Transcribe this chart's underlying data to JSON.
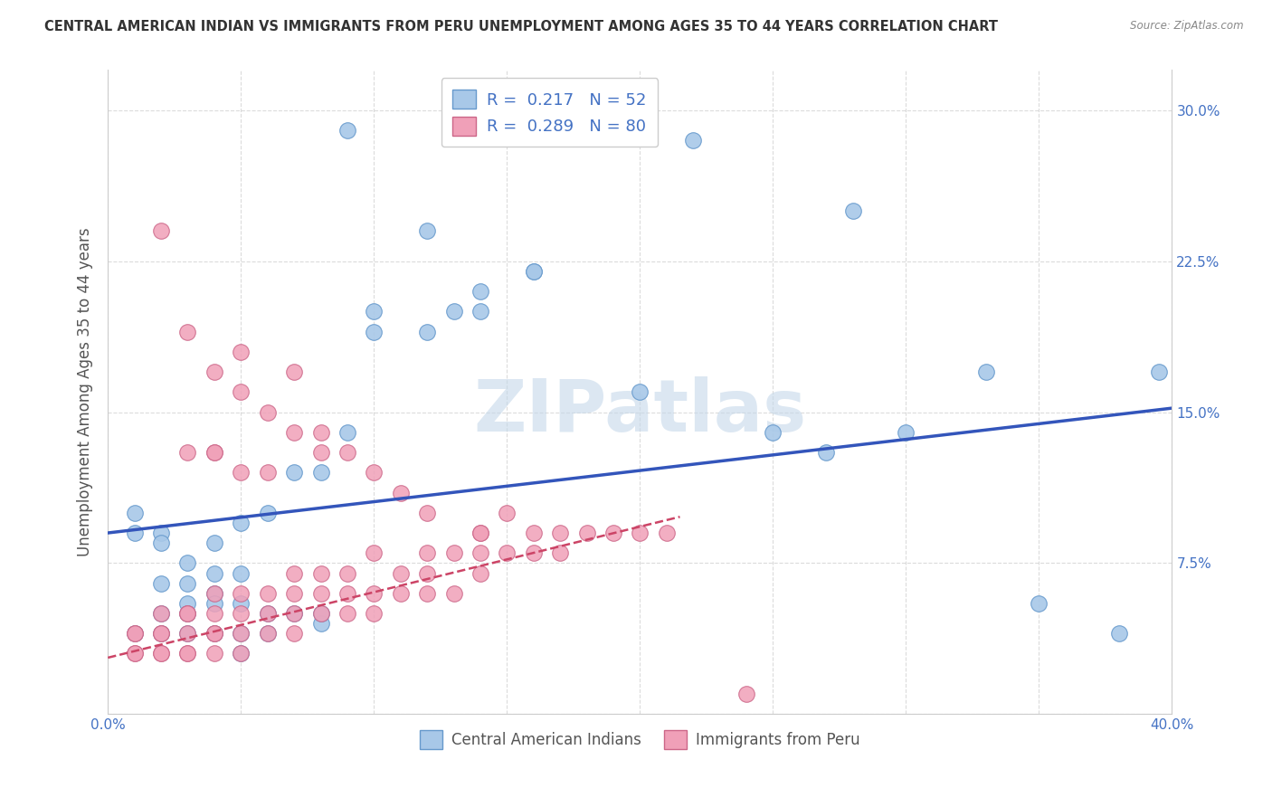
{
  "title": "CENTRAL AMERICAN INDIAN VS IMMIGRANTS FROM PERU UNEMPLOYMENT AMONG AGES 35 TO 44 YEARS CORRELATION CHART",
  "source": "Source: ZipAtlas.com",
  "ylabel": "Unemployment Among Ages 35 to 44 years",
  "xlim": [
    0.0,
    0.4
  ],
  "ylim": [
    0.0,
    0.32
  ],
  "xtick_positions": [
    0.0,
    0.05,
    0.1,
    0.15,
    0.2,
    0.25,
    0.3,
    0.35,
    0.4
  ],
  "xticklabels": [
    "0.0%",
    "",
    "",
    "",
    "",
    "",
    "",
    "",
    "40.0%"
  ],
  "ytick_positions": [
    0.0,
    0.075,
    0.15,
    0.225,
    0.3
  ],
  "yticklabels": [
    "",
    "7.5%",
    "15.0%",
    "22.5%",
    "30.0%"
  ],
  "R_blue": 0.217,
  "N_blue": 52,
  "R_pink": 0.289,
  "N_pink": 80,
  "blue_dot_color": "#a8c8e8",
  "blue_edge_color": "#6699cc",
  "pink_dot_color": "#f0a0b8",
  "pink_edge_color": "#cc6688",
  "blue_line_color": "#3355bb",
  "pink_line_color": "#cc4466",
  "watermark": "ZIPatlas",
  "watermark_color": "#c5d8ea",
  "background_color": "#ffffff",
  "grid_color": "#cccccc",
  "title_color": "#333333",
  "axis_label_color": "#555555",
  "tick_color": "#4472c4",
  "legend_text_color": "#4472c4",
  "blue_line_x": [
    0.0,
    0.4
  ],
  "blue_line_y": [
    0.09,
    0.152
  ],
  "pink_line_x": [
    0.0,
    0.215
  ],
  "pink_line_y": [
    0.028,
    0.098
  ],
  "blue_x": [
    0.09,
    0.14,
    0.13,
    0.16,
    0.2,
    0.22,
    0.25,
    0.33,
    0.35,
    0.38,
    0.395,
    0.3,
    0.28,
    0.27,
    0.16,
    0.14,
    0.1,
    0.1,
    0.12,
    0.12,
    0.09,
    0.08,
    0.07,
    0.06,
    0.05,
    0.04,
    0.02,
    0.01,
    0.01,
    0.02,
    0.03,
    0.04,
    0.05,
    0.02,
    0.03,
    0.04,
    0.05,
    0.03,
    0.04,
    0.03,
    0.02,
    0.01,
    0.02,
    0.03,
    0.04,
    0.05,
    0.06,
    0.08,
    0.08,
    0.07,
    0.06,
    0.05
  ],
  "blue_y": [
    0.29,
    0.21,
    0.2,
    0.22,
    0.16,
    0.285,
    0.14,
    0.17,
    0.055,
    0.04,
    0.17,
    0.14,
    0.25,
    0.13,
    0.22,
    0.2,
    0.2,
    0.19,
    0.24,
    0.19,
    0.14,
    0.12,
    0.12,
    0.1,
    0.095,
    0.085,
    0.09,
    0.09,
    0.1,
    0.085,
    0.075,
    0.07,
    0.07,
    0.065,
    0.065,
    0.06,
    0.055,
    0.055,
    0.055,
    0.05,
    0.05,
    0.04,
    0.04,
    0.04,
    0.04,
    0.04,
    0.04,
    0.045,
    0.05,
    0.05,
    0.05,
    0.03
  ],
  "pink_x": [
    0.01,
    0.01,
    0.01,
    0.01,
    0.02,
    0.02,
    0.02,
    0.02,
    0.02,
    0.03,
    0.03,
    0.03,
    0.03,
    0.03,
    0.04,
    0.04,
    0.04,
    0.04,
    0.04,
    0.05,
    0.05,
    0.05,
    0.05,
    0.06,
    0.06,
    0.06,
    0.07,
    0.07,
    0.07,
    0.07,
    0.08,
    0.08,
    0.08,
    0.09,
    0.09,
    0.09,
    0.1,
    0.1,
    0.1,
    0.11,
    0.11,
    0.12,
    0.12,
    0.12,
    0.13,
    0.13,
    0.14,
    0.14,
    0.14,
    0.15,
    0.16,
    0.16,
    0.17,
    0.17,
    0.18,
    0.19,
    0.2,
    0.21,
    0.02,
    0.03,
    0.04,
    0.05,
    0.04,
    0.05,
    0.06,
    0.07,
    0.08,
    0.07,
    0.08,
    0.09,
    0.1,
    0.11,
    0.12,
    0.14,
    0.15,
    0.24,
    0.03,
    0.04,
    0.05,
    0.06
  ],
  "pink_y": [
    0.03,
    0.03,
    0.04,
    0.04,
    0.03,
    0.03,
    0.04,
    0.04,
    0.05,
    0.03,
    0.03,
    0.04,
    0.05,
    0.05,
    0.03,
    0.04,
    0.04,
    0.05,
    0.06,
    0.03,
    0.04,
    0.05,
    0.06,
    0.04,
    0.05,
    0.06,
    0.04,
    0.05,
    0.06,
    0.07,
    0.05,
    0.06,
    0.07,
    0.05,
    0.06,
    0.07,
    0.05,
    0.06,
    0.08,
    0.06,
    0.07,
    0.06,
    0.07,
    0.08,
    0.06,
    0.08,
    0.07,
    0.08,
    0.09,
    0.08,
    0.08,
    0.09,
    0.08,
    0.09,
    0.09,
    0.09,
    0.09,
    0.09,
    0.24,
    0.19,
    0.17,
    0.18,
    0.13,
    0.16,
    0.15,
    0.14,
    0.13,
    0.17,
    0.14,
    0.13,
    0.12,
    0.11,
    0.1,
    0.09,
    0.1,
    0.01,
    0.13,
    0.13,
    0.12,
    0.12
  ]
}
